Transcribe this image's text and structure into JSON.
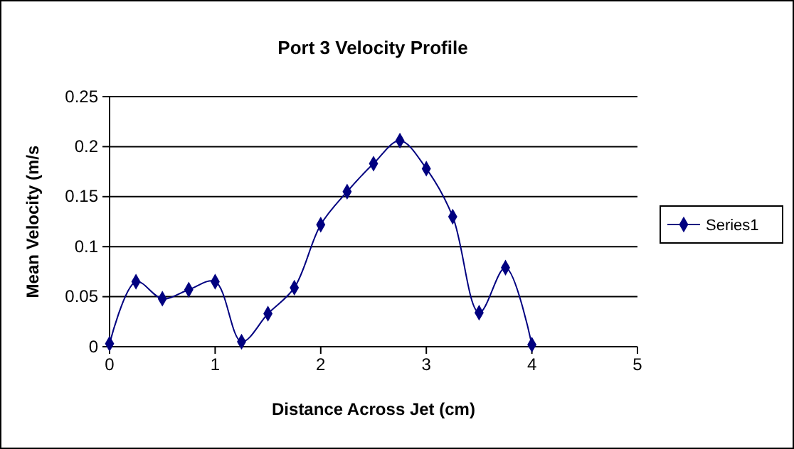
{
  "chart_data": {
    "type": "line",
    "title": "Port 3 Velocity Profile",
    "xlabel": "Distance Across Jet (cm)",
    "ylabel": "Mean Velocity (m/s",
    "x": [
      0,
      0.25,
      0.5,
      0.75,
      1,
      1.25,
      1.5,
      1.75,
      2,
      2.25,
      2.5,
      2.75,
      3,
      3.25,
      3.5,
      3.75,
      4
    ],
    "series": [
      {
        "name": "Series1",
        "color": "#000080",
        "values": [
          0.003,
          0.065,
          0.048,
          0.057,
          0.065,
          0.005,
          0.033,
          0.059,
          0.122,
          0.155,
          0.183,
          0.206,
          0.178,
          0.13,
          0.034,
          0.079,
          0.002
        ]
      }
    ],
    "xlim": [
      0,
      5
    ],
    "xticks": [
      0,
      1,
      2,
      3,
      4,
      5
    ],
    "ylim": [
      0,
      0.25
    ],
    "yticks": [
      0,
      0.05,
      0.1,
      0.15,
      0.2,
      0.25
    ],
    "grid": "y",
    "legend": "right",
    "marker": "diamond",
    "line_style": "solid"
  }
}
